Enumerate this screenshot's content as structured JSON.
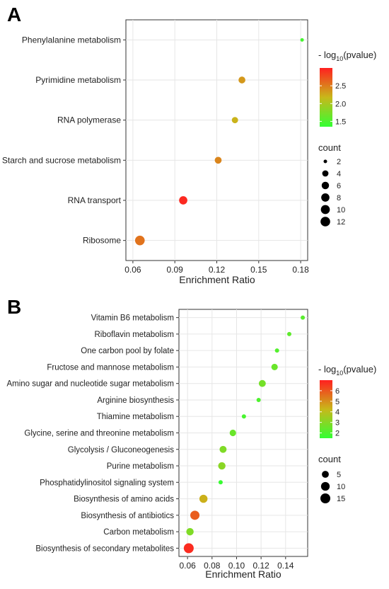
{
  "panels": [
    {
      "label": "A",
      "chart_data": {
        "type": "scatter",
        "title": "",
        "xlabel": "Enrichment Ratio",
        "ylabel": "",
        "xlim": [
          0.055,
          0.185
        ],
        "xticks": [
          0.06,
          0.09,
          0.12,
          0.15,
          0.18
        ],
        "xtick_labels": [
          "0.06",
          "0.09",
          "0.12",
          "0.15",
          "0.18"
        ],
        "categories": [
          "Phenylalanine metabolism",
          "Pyrimidine metabolism",
          "RNA polymerase",
          "Starch and sucrose metabolism",
          "RNA transport",
          "Ribosome"
        ],
        "points": [
          {
            "term": "Phenylalanine metabolism",
            "x": 0.181,
            "count": 2,
            "neg_log10_pvalue": 1.45
          },
          {
            "term": "Pyrimidine metabolism",
            "x": 0.138,
            "count": 5,
            "neg_log10_pvalue": 2.35
          },
          {
            "term": "RNA polymerase",
            "x": 0.133,
            "count": 4,
            "neg_log10_pvalue": 2.2
          },
          {
            "term": "Starch and sucrose metabolism",
            "x": 0.121,
            "count": 5,
            "neg_log10_pvalue": 2.45
          },
          {
            "term": "RNA transport",
            "x": 0.096,
            "count": 8,
            "neg_log10_pvalue": 2.95
          },
          {
            "term": "Ribosome",
            "x": 0.065,
            "count": 12,
            "neg_log10_pvalue": 2.55
          }
        ],
        "grid": true,
        "color_legend": {
          "title_prefix": "- log",
          "title_sub": "10",
          "title_suffix": "(pvalue)",
          "range": [
            1.35,
            3.0
          ],
          "ticks": [
            1.5,
            2.0,
            2.5
          ],
          "tick_labels": [
            "1.5",
            "2.0",
            "2.5"
          ],
          "low_color": "#33ff33",
          "mid_color": "#c8b81a",
          "high_color": "#ff2020"
        },
        "size_legend": {
          "title": "count",
          "values": [
            2,
            4,
            6,
            8,
            10,
            12
          ],
          "labels": [
            "2",
            "4",
            "6",
            "8",
            "10",
            "12"
          ]
        },
        "legend_position": "right"
      }
    },
    {
      "label": "B",
      "chart_data": {
        "type": "scatter",
        "title": "",
        "xlabel": "Enrichment Ratio",
        "ylabel": "",
        "xlim": [
          0.053,
          0.158
        ],
        "xticks": [
          0.06,
          0.08,
          0.1,
          0.12,
          0.14
        ],
        "xtick_labels": [
          "0.06",
          "0.08",
          "0.10",
          "0.12",
          "0.14"
        ],
        "categories": [
          "Vitamin B6 metabolism",
          "Riboflavin metabolism",
          "One carbon pool by folate",
          "Fructose and mannose metabolism",
          "Amino sugar and nucleotide sugar metabolism",
          "Arginine biosynthesis",
          "Thiamine metabolism",
          "Glycine, serine and threonine metabolism",
          "Glycolysis / Gluconeogenesis",
          "Purine metabolism",
          "Phosphatidylinositol signaling system",
          "Biosynthesis of amino acids",
          "Biosynthesis of antibiotics",
          "Carbon metabolism",
          "Biosynthesis of secondary metabolites"
        ],
        "points": [
          {
            "term": "Vitamin B6 metabolism",
            "x": 0.154,
            "count": 2,
            "neg_log10_pvalue": 2.2
          },
          {
            "term": "Riboflavin metabolism",
            "x": 0.143,
            "count": 2,
            "neg_log10_pvalue": 2.3
          },
          {
            "term": "One carbon pool by folate",
            "x": 0.133,
            "count": 2,
            "neg_log10_pvalue": 2.1
          },
          {
            "term": "Fructose and mannose metabolism",
            "x": 0.131,
            "count": 4,
            "neg_log10_pvalue": 2.5
          },
          {
            "term": "Amino sugar and nucleotide sugar metabolism",
            "x": 0.121,
            "count": 5,
            "neg_log10_pvalue": 2.7
          },
          {
            "term": "Arginine biosynthesis",
            "x": 0.118,
            "count": 2,
            "neg_log10_pvalue": 2.0
          },
          {
            "term": "Thiamine metabolism",
            "x": 0.106,
            "count": 2,
            "neg_log10_pvalue": 1.9
          },
          {
            "term": "Glycine, serine and threonine metabolism",
            "x": 0.097,
            "count": 4,
            "neg_log10_pvalue": 2.5
          },
          {
            "term": "Glycolysis / Gluconeogenesis",
            "x": 0.089,
            "count": 5,
            "neg_log10_pvalue": 2.9
          },
          {
            "term": "Purine metabolism",
            "x": 0.088,
            "count": 6,
            "neg_log10_pvalue": 3.1
          },
          {
            "term": "Phosphatidylinositol signaling system",
            "x": 0.087,
            "count": 2,
            "neg_log10_pvalue": 1.6
          },
          {
            "term": "Biosynthesis of amino acids",
            "x": 0.073,
            "count": 8,
            "neg_log10_pvalue": 4.4
          },
          {
            "term": "Biosynthesis of antibiotics",
            "x": 0.066,
            "count": 12,
            "neg_log10_pvalue": 5.9
          },
          {
            "term": "Carbon metabolism",
            "x": 0.062,
            "count": 6,
            "neg_log10_pvalue": 2.9
          },
          {
            "term": "Biosynthesis of secondary metabolites",
            "x": 0.061,
            "count": 15,
            "neg_log10_pvalue": 6.8
          }
        ],
        "grid": true,
        "color_legend": {
          "title_prefix": "- log",
          "title_sub": "10",
          "title_suffix": "(pvalue)",
          "range": [
            1.5,
            7.0
          ],
          "ticks": [
            2,
            3,
            4,
            5,
            6
          ],
          "tick_labels": [
            "2",
            "3",
            "4",
            "5",
            "6"
          ],
          "low_color": "#33ff33",
          "mid_color": "#c8b81a",
          "high_color": "#ff2020"
        },
        "size_legend": {
          "title": "count",
          "values": [
            5,
            10,
            15
          ],
          "labels": [
            "5",
            "10",
            "15"
          ]
        },
        "legend_position": "right"
      }
    }
  ]
}
